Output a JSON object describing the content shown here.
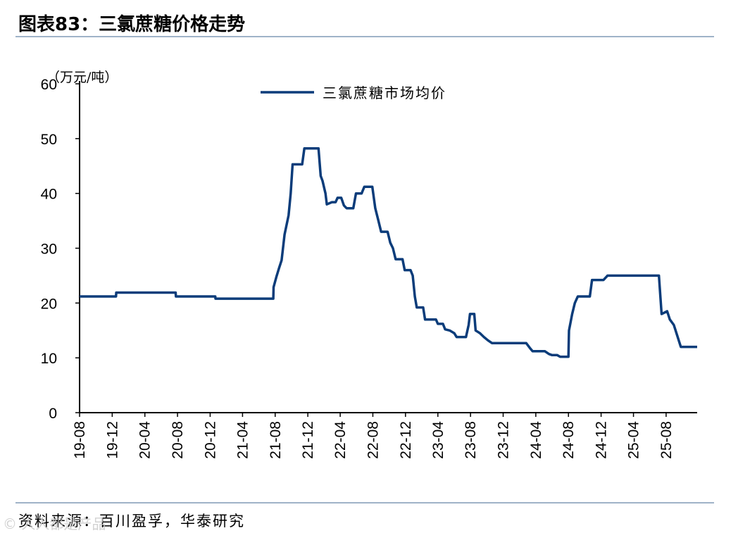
{
  "header": {
    "title": "图表83：三氯蔗糖价格走势"
  },
  "footer": {
    "source": "资料来源：百川盈孚，华泰研究",
    "watermark": "© 人人都是产品"
  },
  "colors": {
    "line": "#0b3c7a",
    "rule": "#9fb3c8"
  },
  "chart_data": {
    "type": "line",
    "title": "",
    "ylabel": "（万元/吨）",
    "xlabel": "",
    "ylim": [
      0,
      60
    ],
    "yticks": [
      0,
      10,
      20,
      30,
      40,
      50,
      60
    ],
    "xlim": [
      "2019-08-01",
      "2025-11-25"
    ],
    "xtick_labels": [
      "19-08",
      "19-12",
      "20-04",
      "20-08",
      "20-12",
      "21-04",
      "21-08",
      "21-12",
      "22-04",
      "22-08",
      "22-12",
      "23-04",
      "23-08",
      "23-12",
      "24-04",
      "24-08",
      "24-12",
      "25-04",
      "25-08"
    ],
    "legend": {
      "position": "top",
      "entries": [
        "三氯蔗糖市场均价"
      ]
    },
    "grid": false,
    "series": [
      {
        "name": "三氯蔗糖市场均价",
        "points": [
          [
            "2019-08-01",
            21.2
          ],
          [
            "2019-09-01",
            21.2
          ],
          [
            "2019-10-01",
            21.2
          ],
          [
            "2019-11-01",
            21.2
          ],
          [
            "2019-12-15",
            21.2
          ],
          [
            "2019-12-16",
            21.9
          ],
          [
            "2020-02-01",
            21.9
          ],
          [
            "2020-04-01",
            21.9
          ],
          [
            "2020-06-01",
            21.9
          ],
          [
            "2020-07-25",
            21.9
          ],
          [
            "2020-07-26",
            21.2
          ],
          [
            "2020-10-01",
            21.2
          ],
          [
            "2020-12-20",
            21.2
          ],
          [
            "2020-12-21",
            20.8
          ],
          [
            "2021-03-01",
            20.8
          ],
          [
            "2021-05-01",
            20.8
          ],
          [
            "2021-07-25",
            20.8
          ],
          [
            "2021-07-26",
            22.9
          ],
          [
            "2021-08-05",
            24.7
          ],
          [
            "2021-08-15",
            26.3
          ],
          [
            "2021-08-25",
            27.8
          ],
          [
            "2021-09-05",
            32.5
          ],
          [
            "2021-09-20",
            36.0
          ],
          [
            "2021-09-28",
            40.0
          ],
          [
            "2021-10-05",
            45.3
          ],
          [
            "2021-11-10",
            45.3
          ],
          [
            "2021-11-18",
            48.2
          ],
          [
            "2022-01-10",
            48.2
          ],
          [
            "2022-01-18",
            43.2
          ],
          [
            "2022-01-25",
            42.3
          ],
          [
            "2022-02-05",
            40.0
          ],
          [
            "2022-02-10",
            38.0
          ],
          [
            "2022-03-01",
            38.4
          ],
          [
            "2022-03-15",
            38.4
          ],
          [
            "2022-03-22",
            39.2
          ],
          [
            "2022-04-05",
            39.2
          ],
          [
            "2022-04-15",
            37.8
          ],
          [
            "2022-04-25",
            37.3
          ],
          [
            "2022-05-20",
            37.3
          ],
          [
            "2022-05-30",
            40.0
          ],
          [
            "2022-06-20",
            40.0
          ],
          [
            "2022-06-30",
            41.2
          ],
          [
            "2022-07-30",
            41.2
          ],
          [
            "2022-08-10",
            37.3
          ],
          [
            "2022-08-22",
            35.0
          ],
          [
            "2022-09-01",
            33.0
          ],
          [
            "2022-09-25",
            33.0
          ],
          [
            "2022-10-05",
            31.0
          ],
          [
            "2022-10-15",
            30.0
          ],
          [
            "2022-10-25",
            28.0
          ],
          [
            "2022-11-20",
            28.0
          ],
          [
            "2022-11-28",
            26.0
          ],
          [
            "2022-12-20",
            26.0
          ],
          [
            "2022-12-28",
            25.0
          ],
          [
            "2023-01-05",
            21.2
          ],
          [
            "2023-01-12",
            19.2
          ],
          [
            "2023-02-05",
            19.2
          ],
          [
            "2023-02-12",
            17.0
          ],
          [
            "2023-03-25",
            17.0
          ],
          [
            "2023-04-01",
            16.2
          ],
          [
            "2023-04-20",
            16.2
          ],
          [
            "2023-04-28",
            15.2
          ],
          [
            "2023-05-15",
            15.0
          ],
          [
            "2023-06-01",
            14.5
          ],
          [
            "2023-06-10",
            13.8
          ],
          [
            "2023-07-15",
            13.8
          ],
          [
            "2023-07-25",
            16.0
          ],
          [
            "2023-07-30",
            18.0
          ],
          [
            "2023-08-15",
            18.0
          ],
          [
            "2023-08-20",
            15.0
          ],
          [
            "2023-09-05",
            14.5
          ],
          [
            "2023-09-20",
            13.8
          ],
          [
            "2023-10-05",
            13.2
          ],
          [
            "2023-10-20",
            12.7
          ],
          [
            "2023-11-20",
            12.7
          ],
          [
            "2024-01-20",
            12.7
          ],
          [
            "2024-02-25",
            12.7
          ],
          [
            "2024-03-10",
            11.8
          ],
          [
            "2024-03-20",
            11.2
          ],
          [
            "2024-05-05",
            11.2
          ],
          [
            "2024-05-20",
            10.7
          ],
          [
            "2024-06-01",
            10.5
          ],
          [
            "2024-06-20",
            10.5
          ],
          [
            "2024-07-01",
            10.2
          ],
          [
            "2024-08-01",
            10.2
          ],
          [
            "2024-08-03",
            15.0
          ],
          [
            "2024-08-15",
            18.0
          ],
          [
            "2024-08-25",
            20.0
          ],
          [
            "2024-09-05",
            21.2
          ],
          [
            "2024-10-20",
            21.2
          ],
          [
            "2024-10-28",
            24.2
          ],
          [
            "2024-12-10",
            24.2
          ],
          [
            "2024-12-25",
            25.0
          ],
          [
            "2025-03-01",
            25.0
          ],
          [
            "2025-05-01",
            25.0
          ],
          [
            "2025-07-05",
            25.0
          ],
          [
            "2025-07-15",
            18.0
          ],
          [
            "2025-08-05",
            18.5
          ],
          [
            "2025-08-15",
            17.0
          ],
          [
            "2025-08-30",
            16.0
          ],
          [
            "2025-09-10",
            14.3
          ],
          [
            "2025-09-25",
            12.0
          ],
          [
            "2025-11-25",
            12.0
          ]
        ]
      }
    ]
  }
}
